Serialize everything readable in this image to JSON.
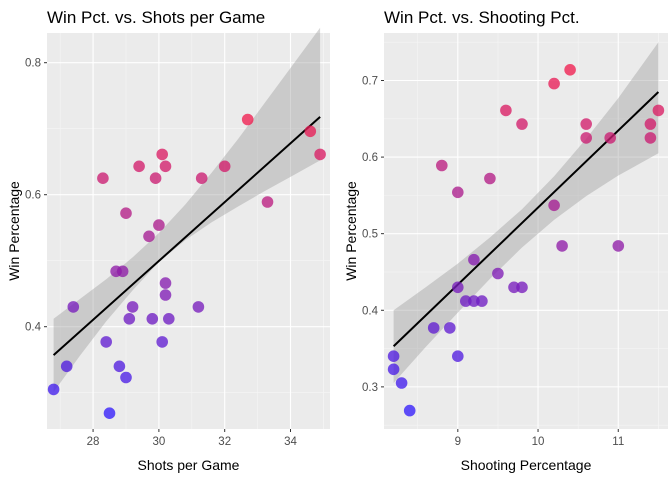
{
  "chart_data": [
    {
      "type": "scatter",
      "title": "Win Pct. vs. Shots per Game",
      "xlabel": "Shots per Game",
      "ylabel": "Win Percentage",
      "xlim": [
        26.6,
        35.2
      ],
      "ylim": [
        0.245,
        0.845
      ],
      "xticks": [
        28,
        30,
        32,
        34
      ],
      "yticks": [
        0.4,
        0.6,
        0.8
      ],
      "xtick_labels": [
        "28",
        "30",
        "32",
        "34"
      ],
      "ytick_labels": [
        "0.4",
        "0.6",
        "0.8"
      ],
      "grid": true,
      "fit": {
        "x0": 26.8,
        "y0": 0.357,
        "x1": 34.9,
        "y1": 0.718
      },
      "band": [
        [
          26.8,
          0.301,
          0.412
        ],
        [
          27.6,
          0.356,
          0.442
        ],
        [
          28.4,
          0.408,
          0.472
        ],
        [
          29.2,
          0.455,
          0.505
        ],
        [
          30.0,
          0.498,
          0.542
        ],
        [
          30.8,
          0.531,
          0.585
        ],
        [
          31.6,
          0.558,
          0.633
        ],
        [
          32.4,
          0.582,
          0.684
        ],
        [
          33.2,
          0.605,
          0.738
        ],
        [
          34.0,
          0.627,
          0.792
        ],
        [
          34.9,
          0.652,
          0.853
        ]
      ],
      "points": [
        [
          26.8,
          0.305
        ],
        [
          27.2,
          0.34
        ],
        [
          27.4,
          0.43
        ],
        [
          28.3,
          0.625
        ],
        [
          28.4,
          0.377
        ],
        [
          28.5,
          0.269
        ],
        [
          28.7,
          0.484
        ],
        [
          28.8,
          0.34
        ],
        [
          28.9,
          0.484
        ],
        [
          29.0,
          0.572
        ],
        [
          29.0,
          0.323
        ],
        [
          29.1,
          0.412
        ],
        [
          29.2,
          0.43
        ],
        [
          29.4,
          0.643
        ],
        [
          29.7,
          0.537
        ],
        [
          29.8,
          0.412
        ],
        [
          29.9,
          0.625
        ],
        [
          30.0,
          0.554
        ],
        [
          30.1,
          0.661
        ],
        [
          30.1,
          0.377
        ],
        [
          30.2,
          0.466
        ],
        [
          30.2,
          0.643
        ],
        [
          30.2,
          0.448
        ],
        [
          30.3,
          0.412
        ],
        [
          31.2,
          0.43
        ],
        [
          31.3,
          0.625
        ],
        [
          32.0,
          0.643
        ],
        [
          32.7,
          0.714
        ],
        [
          33.3,
          0.589
        ],
        [
          34.6,
          0.696
        ],
        [
          34.9,
          0.661
        ]
      ]
    },
    {
      "type": "scatter",
      "title": "Win Pct. vs. Shooting Pct.",
      "xlabel": "Shooting Percentage",
      "ylabel": "Win Percentage",
      "xlim": [
        8.08,
        11.62
      ],
      "ylim": [
        0.245,
        0.762
      ],
      "xticks": [
        9,
        10,
        11
      ],
      "yticks": [
        0.3,
        0.4,
        0.5,
        0.6,
        0.7
      ],
      "xtick_labels": [
        "9",
        "10",
        "11"
      ],
      "ytick_labels": [
        "0.3",
        "0.4",
        "0.5",
        "0.6",
        "0.7"
      ],
      "grid": true,
      "fit": {
        "x0": 8.2,
        "y0": 0.353,
        "x1": 11.5,
        "y1": 0.685
      },
      "band": [
        [
          8.2,
          0.305,
          0.4
        ],
        [
          8.6,
          0.352,
          0.43
        ],
        [
          9.0,
          0.397,
          0.461
        ],
        [
          9.4,
          0.441,
          0.495
        ],
        [
          9.8,
          0.482,
          0.532
        ],
        [
          10.2,
          0.518,
          0.575
        ],
        [
          10.6,
          0.549,
          0.624
        ],
        [
          11.0,
          0.576,
          0.677
        ],
        [
          11.5,
          0.605,
          0.75
        ]
      ],
      "points": [
        [
          8.2,
          0.34
        ],
        [
          8.2,
          0.323
        ],
        [
          8.3,
          0.305
        ],
        [
          8.4,
          0.269
        ],
        [
          8.8,
          0.589
        ],
        [
          8.7,
          0.377
        ],
        [
          8.9,
          0.377
        ],
        [
          9.0,
          0.554
        ],
        [
          9.0,
          0.43
        ],
        [
          9.0,
          0.34
        ],
        [
          9.1,
          0.412
        ],
        [
          9.2,
          0.466
        ],
        [
          9.2,
          0.412
        ],
        [
          9.3,
          0.412
        ],
        [
          9.4,
          0.572
        ],
        [
          9.5,
          0.448
        ],
        [
          9.6,
          0.661
        ],
        [
          9.7,
          0.43
        ],
        [
          9.8,
          0.643
        ],
        [
          9.8,
          0.43
        ],
        [
          10.2,
          0.696
        ],
        [
          10.2,
          0.537
        ],
        [
          10.3,
          0.484
        ],
        [
          10.4,
          0.714
        ],
        [
          10.6,
          0.643
        ],
        [
          10.6,
          0.625
        ],
        [
          10.9,
          0.625
        ],
        [
          11.0,
          0.484
        ],
        [
          11.4,
          0.643
        ],
        [
          11.4,
          0.625
        ],
        [
          11.5,
          0.661
        ]
      ]
    }
  ]
}
